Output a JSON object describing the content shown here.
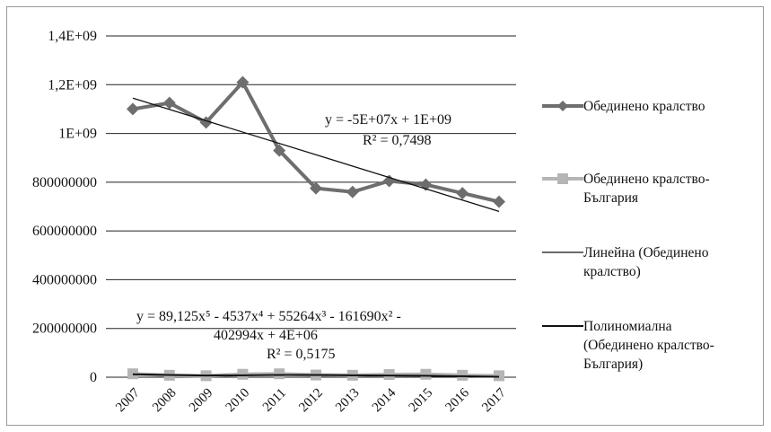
{
  "chart_data": {
    "type": "line",
    "categories": [
      "2007",
      "2008",
      "2009",
      "2010",
      "2011",
      "2012",
      "2013",
      "2014",
      "2015",
      "2016",
      "2017"
    ],
    "ylim": [
      0,
      1400000000
    ],
    "yticks": [
      0,
      200000000,
      400000000,
      600000000,
      800000000,
      1000000000,
      1200000000,
      1400000000
    ],
    "ytick_labels": [
      "0",
      "200000000",
      "400000000",
      "600000000",
      "800000000",
      "1E+09",
      "1,2E+09",
      "1,4E+09"
    ],
    "grid": true,
    "legend_position": "right",
    "colors": {
      "series_uk": "#6e6e6e",
      "series_uk_bg": "#b5b5b5",
      "trend_linear": "#111111",
      "trend_poly": "#111111",
      "grid": "#222222"
    },
    "series": [
      {
        "name": "Обединено кралство",
        "values": [
          1100000000,
          1125000000,
          1045000000,
          1210000000,
          930000000,
          775000000,
          760000000,
          805000000,
          790000000,
          755000000,
          720000000
        ]
      },
      {
        "name": "Обединено кралство-България",
        "values": [
          14000000,
          8000000,
          6000000,
          12000000,
          14000000,
          9000000,
          8000000,
          11000000,
          12000000,
          8000000,
          6000000
        ]
      },
      {
        "name": "Линейна (Обединено кралство)",
        "trend": "linear",
        "line_ends": [
          1145000000,
          680000000
        ]
      },
      {
        "name": "Полиномиална (Обединено кралство-България)",
        "trend": "polynomial",
        "values": [
          12000000,
          9000000,
          7000000,
          8000000,
          9000000,
          9000000,
          8000000,
          7000000,
          6000000,
          4000000,
          2000000
        ]
      }
    ],
    "legend": [
      {
        "lines": [
          "Обединено кралство"
        ],
        "kind": "marker-dark"
      },
      {
        "lines": [
          "Обединено кралство-",
          "България"
        ],
        "kind": "marker-light"
      },
      {
        "lines": [
          "Линейна (Обединено",
          "кралство)"
        ],
        "kind": "thin-line"
      },
      {
        "lines": [
          "Полиномиална",
          "(Обединено кралство-",
          "България)"
        ],
        "kind": "dark-line"
      }
    ],
    "annotations": {
      "linear_equation": "y = -5E+07x + 1E+09",
      "linear_r2": "R² = 0,7498",
      "poly_equation_line1": "y = 89,125x⁵ - 4537x⁴ + 55264x³ - 161690x² -",
      "poly_equation_line2": "402994x + 4E+06",
      "poly_r2": "R² = 0,5175"
    }
  }
}
